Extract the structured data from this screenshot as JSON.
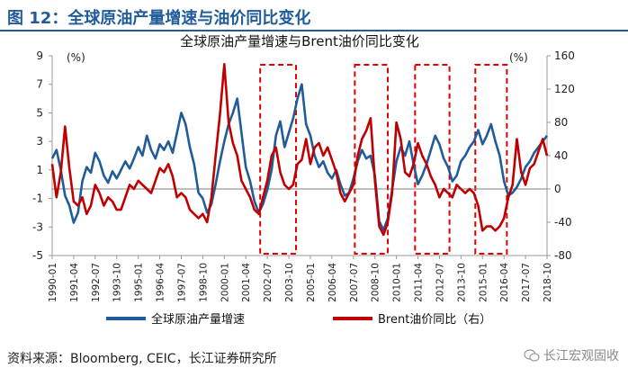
{
  "figure": {
    "title": "图 12：全球原油产量增速与油价同比变化",
    "source": "资料来源：Bloomberg, CEIC，长江证券研究所",
    "watermark": "长江宏观固收"
  },
  "chart_data": {
    "type": "line",
    "title": "全球原油产量增速与Brent油价同比变化",
    "left_axis": {
      "unit": "(%)",
      "range": [
        -5,
        9
      ],
      "ticks": [
        -5,
        -3,
        -1,
        1,
        3,
        5,
        7,
        9
      ]
    },
    "right_axis": {
      "unit": "(%)",
      "range": [
        -80,
        160
      ],
      "ticks": [
        -80,
        -40,
        0,
        40,
        80,
        120,
        160
      ]
    },
    "x_range": [
      "1990-01",
      "2018-10"
    ],
    "x_ticks": [
      "1990-01",
      "1991-04",
      "1992-07",
      "1993-10",
      "1995-01",
      "1996-04",
      "1997-07",
      "1998-10",
      "2000-01",
      "2001-04",
      "2002-07",
      "2003-10",
      "2005-01",
      "2006-04",
      "2007-07",
      "2008-10",
      "2010-01",
      "2011-04",
      "2012-07",
      "2013-10",
      "2015-01",
      "2016-04",
      "2017-07",
      "2018-10"
    ],
    "grid": false,
    "zero_line_color": "#7f7f7f",
    "legend_position": "bottom",
    "series": [
      {
        "name": "全球原油产量增速",
        "axis": "left",
        "color": "#1f5c99",
        "points": [
          [
            "1990-01",
            1.8
          ],
          [
            "1990-04",
            2.4
          ],
          [
            "1990-07",
            1.0
          ],
          [
            "1990-10",
            -0.8
          ],
          [
            "1991-01",
            -1.5
          ],
          [
            "1991-04",
            -2.7
          ],
          [
            "1991-07",
            -2.0
          ],
          [
            "1991-10",
            0.2
          ],
          [
            "1992-01",
            1.2
          ],
          [
            "1992-04",
            0.8
          ],
          [
            "1992-07",
            2.2
          ],
          [
            "1992-10",
            1.6
          ],
          [
            "1993-01",
            0.6
          ],
          [
            "1993-04",
            0.1
          ],
          [
            "1993-07",
            0.9
          ],
          [
            "1993-10",
            0.4
          ],
          [
            "1994-01",
            1.0
          ],
          [
            "1994-04",
            1.6
          ],
          [
            "1994-07",
            1.1
          ],
          [
            "1994-10",
            1.8
          ],
          [
            "1995-01",
            2.6
          ],
          [
            "1995-04",
            2.0
          ],
          [
            "1995-07",
            3.4
          ],
          [
            "1995-10",
            2.4
          ],
          [
            "1996-01",
            1.8
          ],
          [
            "1996-04",
            2.8
          ],
          [
            "1996-07",
            2.4
          ],
          [
            "1996-10",
            3.0
          ],
          [
            "1997-01",
            2.2
          ],
          [
            "1997-04",
            3.6
          ],
          [
            "1997-07",
            5.0
          ],
          [
            "1997-10",
            4.2
          ],
          [
            "1998-01",
            2.6
          ],
          [
            "1998-04",
            1.4
          ],
          [
            "1998-07",
            -0.6
          ],
          [
            "1998-10",
            -1.0
          ],
          [
            "1999-01",
            -2.0
          ],
          [
            "1999-04",
            -1.4
          ],
          [
            "1999-07",
            0.0
          ],
          [
            "1999-10",
            1.6
          ],
          [
            "2000-01",
            3.0
          ],
          [
            "2000-04",
            4.2
          ],
          [
            "2000-07",
            5.0
          ],
          [
            "2000-10",
            6.0
          ],
          [
            "2001-01",
            3.6
          ],
          [
            "2001-04",
            1.2
          ],
          [
            "2001-07",
            0.2
          ],
          [
            "2001-10",
            -1.2
          ],
          [
            "2002-01",
            -2.0
          ],
          [
            "2002-04",
            -1.4
          ],
          [
            "2002-07",
            -0.4
          ],
          [
            "2002-10",
            1.0
          ],
          [
            "2003-01",
            3.4
          ],
          [
            "2003-04",
            4.4
          ],
          [
            "2003-07",
            2.6
          ],
          [
            "2003-10",
            3.6
          ],
          [
            "2004-01",
            4.6
          ],
          [
            "2004-04",
            6.0
          ],
          [
            "2004-07",
            7.0
          ],
          [
            "2004-10",
            4.2
          ],
          [
            "2005-01",
            3.4
          ],
          [
            "2005-04",
            2.0
          ],
          [
            "2005-07",
            1.2
          ],
          [
            "2005-10",
            1.6
          ],
          [
            "2006-01",
            0.8
          ],
          [
            "2006-04",
            0.4
          ],
          [
            "2006-07",
            1.0
          ],
          [
            "2006-10",
            0.0
          ],
          [
            "2007-01",
            -0.8
          ],
          [
            "2007-04",
            -0.6
          ],
          [
            "2007-07",
            0.4
          ],
          [
            "2007-10",
            1.6
          ],
          [
            "2008-01",
            2.4
          ],
          [
            "2008-04",
            1.8
          ],
          [
            "2008-07",
            2.0
          ],
          [
            "2008-10",
            0.6
          ],
          [
            "2009-01",
            -2.6
          ],
          [
            "2009-04",
            -3.2
          ],
          [
            "2009-07",
            -2.4
          ],
          [
            "2009-10",
            -0.4
          ],
          [
            "2010-01",
            1.6
          ],
          [
            "2010-04",
            2.6
          ],
          [
            "2010-07",
            2.0
          ],
          [
            "2010-10",
            3.0
          ],
          [
            "2011-01",
            1.4
          ],
          [
            "2011-04",
            0.0
          ],
          [
            "2011-07",
            0.6
          ],
          [
            "2011-10",
            1.4
          ],
          [
            "2012-01",
            2.4
          ],
          [
            "2012-04",
            3.4
          ],
          [
            "2012-07",
            2.8
          ],
          [
            "2012-10",
            1.8
          ],
          [
            "2013-01",
            1.2
          ],
          [
            "2013-04",
            0.2
          ],
          [
            "2013-07",
            0.6
          ],
          [
            "2013-10",
            1.6
          ],
          [
            "2014-01",
            2.0
          ],
          [
            "2014-04",
            2.6
          ],
          [
            "2014-07",
            3.0
          ],
          [
            "2014-10",
            3.8
          ],
          [
            "2015-01",
            2.8
          ],
          [
            "2015-04",
            3.4
          ],
          [
            "2015-07",
            4.2
          ],
          [
            "2015-10",
            3.0
          ],
          [
            "2016-01",
            2.0
          ],
          [
            "2016-04",
            0.2
          ],
          [
            "2016-07",
            -0.8
          ],
          [
            "2016-10",
            -0.6
          ],
          [
            "2017-01",
            -0.2
          ],
          [
            "2017-04",
            0.4
          ],
          [
            "2017-07",
            1.2
          ],
          [
            "2017-10",
            1.6
          ],
          [
            "2018-01",
            2.2
          ],
          [
            "2018-04",
            2.6
          ],
          [
            "2018-07",
            3.0
          ],
          [
            "2018-10",
            3.4
          ]
        ]
      },
      {
        "name": "Brent油价同比（右）",
        "axis": "right",
        "color": "#c00000",
        "points": [
          [
            "1990-01",
            30
          ],
          [
            "1990-04",
            -10
          ],
          [
            "1990-07",
            20
          ],
          [
            "1990-10",
            75
          ],
          [
            "1991-01",
            25
          ],
          [
            "1991-04",
            -15
          ],
          [
            "1991-07",
            -20
          ],
          [
            "1991-10",
            -10
          ],
          [
            "1992-01",
            -30
          ],
          [
            "1992-04",
            -20
          ],
          [
            "1992-07",
            5
          ],
          [
            "1992-10",
            -5
          ],
          [
            "1993-01",
            -20
          ],
          [
            "1993-04",
            -10
          ],
          [
            "1993-07",
            -15
          ],
          [
            "1993-10",
            -25
          ],
          [
            "1994-01",
            -25
          ],
          [
            "1994-04",
            -10
          ],
          [
            "1994-07",
            5
          ],
          [
            "1994-10",
            0
          ],
          [
            "1995-01",
            10
          ],
          [
            "1995-04",
            5
          ],
          [
            "1995-07",
            0
          ],
          [
            "1995-10",
            -5
          ],
          [
            "1996-01",
            10
          ],
          [
            "1996-04",
            25
          ],
          [
            "1996-07",
            20
          ],
          [
            "1996-10",
            30
          ],
          [
            "1997-01",
            15
          ],
          [
            "1997-04",
            -10
          ],
          [
            "1997-07",
            -5
          ],
          [
            "1997-10",
            -10
          ],
          [
            "1998-01",
            -25
          ],
          [
            "1998-04",
            -30
          ],
          [
            "1998-07",
            -35
          ],
          [
            "1998-10",
            -30
          ],
          [
            "1999-01",
            -40
          ],
          [
            "1999-04",
            -10
          ],
          [
            "1999-07",
            40
          ],
          [
            "1999-10",
            90
          ],
          [
            "2000-01",
            150
          ],
          [
            "2000-04",
            80
          ],
          [
            "2000-07",
            55
          ],
          [
            "2000-10",
            40
          ],
          [
            "2001-01",
            10
          ],
          [
            "2001-04",
            0
          ],
          [
            "2001-07",
            -10
          ],
          [
            "2001-10",
            -25
          ],
          [
            "2002-01",
            -30
          ],
          [
            "2002-04",
            -10
          ],
          [
            "2002-07",
            10
          ],
          [
            "2002-10",
            40
          ],
          [
            "2003-01",
            50
          ],
          [
            "2003-04",
            20
          ],
          [
            "2003-07",
            5
          ],
          [
            "2003-10",
            0
          ],
          [
            "2004-01",
            5
          ],
          [
            "2004-04",
            30
          ],
          [
            "2004-07",
            35
          ],
          [
            "2004-10",
            60
          ],
          [
            "2005-01",
            30
          ],
          [
            "2005-04",
            50
          ],
          [
            "2005-07",
            55
          ],
          [
            "2005-10",
            40
          ],
          [
            "2006-01",
            50
          ],
          [
            "2006-04",
            35
          ],
          [
            "2006-07",
            20
          ],
          [
            "2006-10",
            -5
          ],
          [
            "2007-01",
            -15
          ],
          [
            "2007-04",
            -5
          ],
          [
            "2007-07",
            5
          ],
          [
            "2007-10",
            40
          ],
          [
            "2008-01",
            60
          ],
          [
            "2008-04",
            70
          ],
          [
            "2008-07",
            85
          ],
          [
            "2008-10",
            10
          ],
          [
            "2009-01",
            -45
          ],
          [
            "2009-04",
            -55
          ],
          [
            "2009-07",
            -40
          ],
          [
            "2009-10",
            -5
          ],
          [
            "2010-01",
            80
          ],
          [
            "2010-04",
            60
          ],
          [
            "2010-07",
            20
          ],
          [
            "2010-10",
            15
          ],
          [
            "2011-01",
            30
          ],
          [
            "2011-04",
            55
          ],
          [
            "2011-07",
            40
          ],
          [
            "2011-10",
            30
          ],
          [
            "2012-01",
            15
          ],
          [
            "2012-04",
            5
          ],
          [
            "2012-07",
            -10
          ],
          [
            "2012-10",
            0
          ],
          [
            "2013-01",
            -5
          ],
          [
            "2013-04",
            -10
          ],
          [
            "2013-07",
            5
          ],
          [
            "2013-10",
            0
          ],
          [
            "2014-01",
            -5
          ],
          [
            "2014-04",
            0
          ],
          [
            "2014-07",
            -5
          ],
          [
            "2014-10",
            -20
          ],
          [
            "2015-01",
            -50
          ],
          [
            "2015-04",
            -45
          ],
          [
            "2015-07",
            -45
          ],
          [
            "2015-10",
            -50
          ],
          [
            "2016-01",
            -45
          ],
          [
            "2016-04",
            -35
          ],
          [
            "2016-07",
            -10
          ],
          [
            "2016-10",
            5
          ],
          [
            "2017-01",
            60
          ],
          [
            "2017-04",
            20
          ],
          [
            "2017-07",
            5
          ],
          [
            "2017-10",
            25
          ],
          [
            "2018-01",
            30
          ],
          [
            "2018-04",
            45
          ],
          [
            "2018-07",
            60
          ],
          [
            "2018-10",
            40
          ]
        ]
      }
    ],
    "annotations": [
      {
        "type": "dashed-box",
        "from": "2002-02",
        "to": "2004-03",
        "color": "#e00000"
      },
      {
        "type": "dashed-box",
        "from": "2007-08",
        "to": "2009-07",
        "color": "#e00000"
      },
      {
        "type": "dashed-box",
        "from": "2011-02",
        "to": "2013-02",
        "color": "#e00000"
      },
      {
        "type": "dashed-box",
        "from": "2014-08",
        "to": "2016-06",
        "color": "#e00000"
      }
    ]
  }
}
